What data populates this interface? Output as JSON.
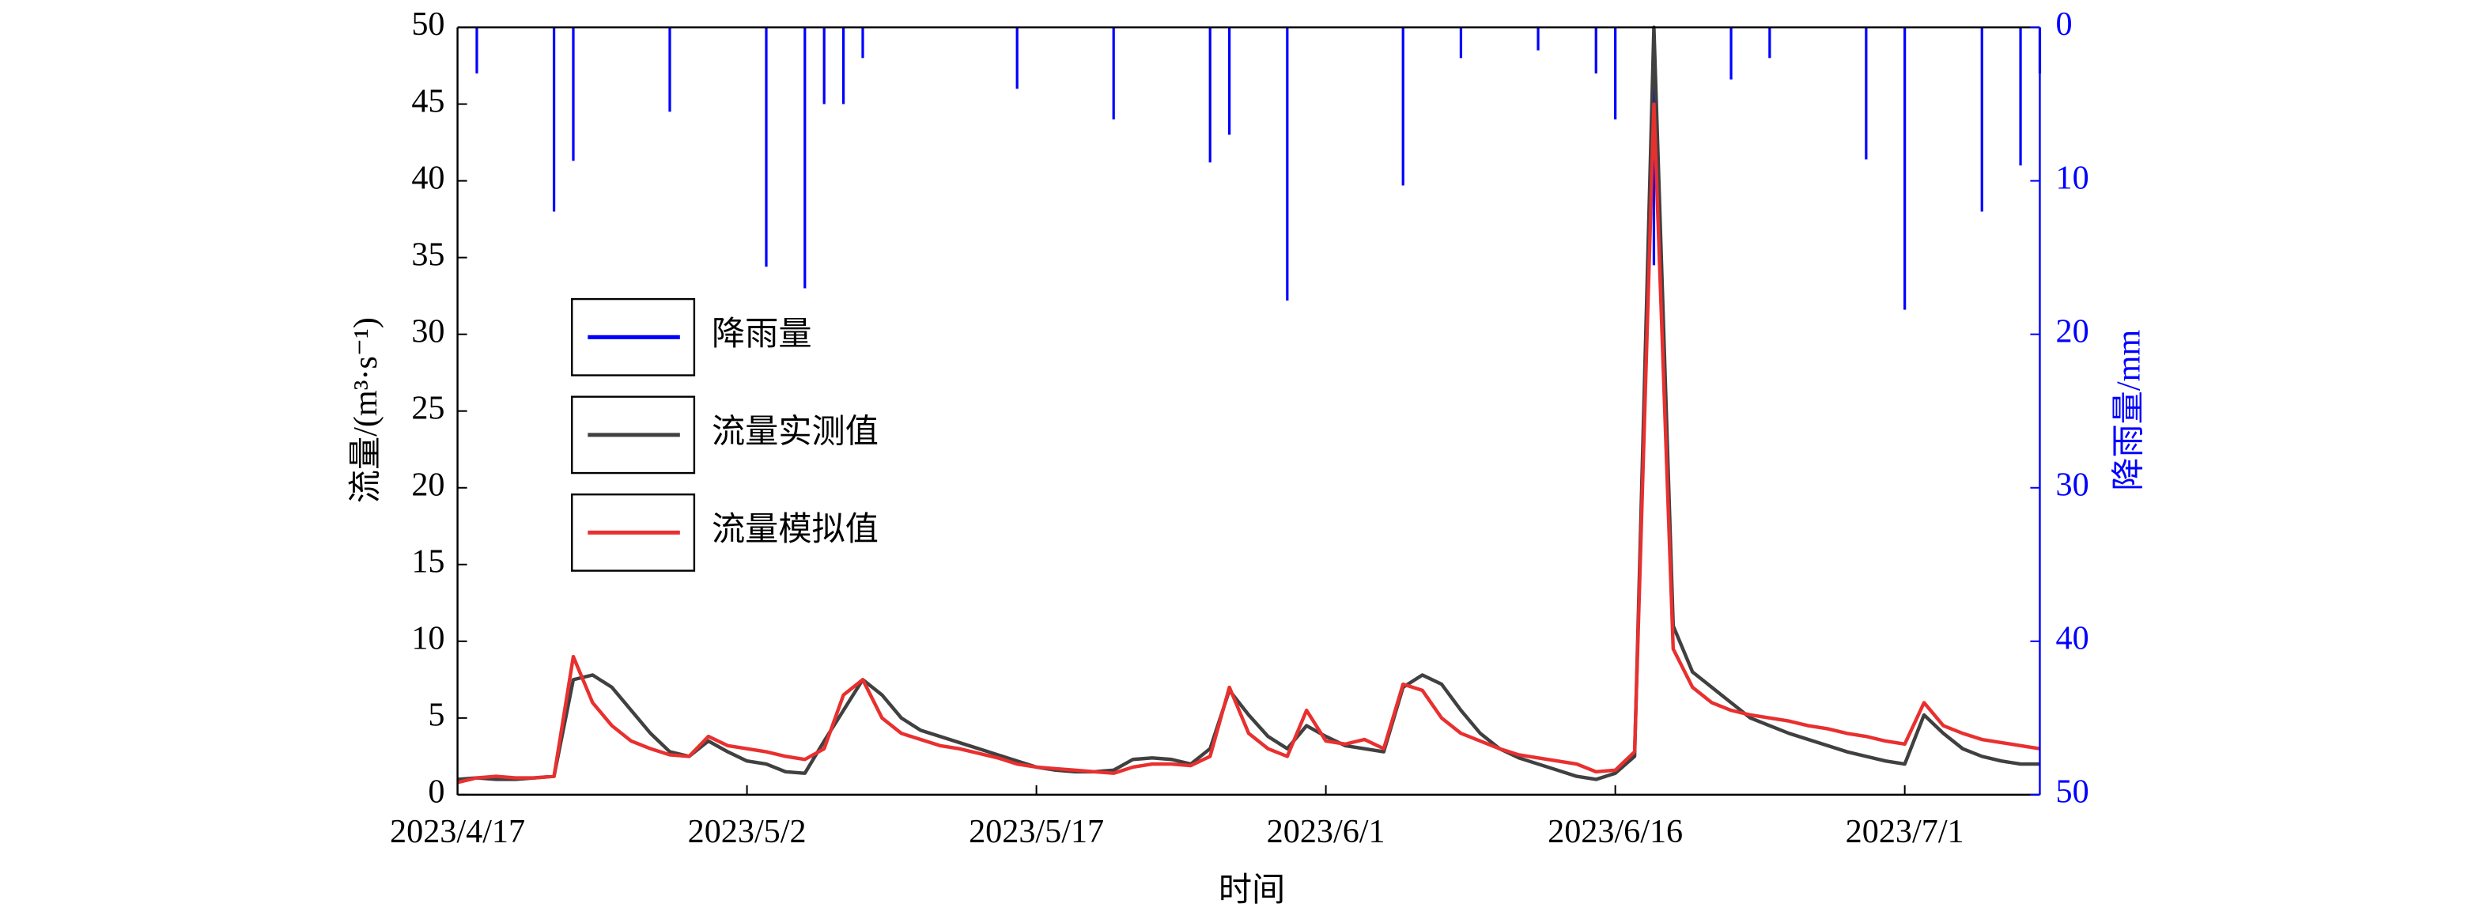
{
  "chart_data": {
    "type": "line",
    "x_label": "时间",
    "y_label": "流量/(m³·s⁻¹)",
    "y2_label": "降雨量/mm",
    "x": [
      "2023/4/17",
      "2023/4/18",
      "2023/4/19",
      "2023/4/20",
      "2023/4/21",
      "2023/4/22",
      "2023/4/23",
      "2023/4/24",
      "2023/4/25",
      "2023/4/26",
      "2023/4/27",
      "2023/4/28",
      "2023/4/29",
      "2023/4/30",
      "2023/5/1",
      "2023/5/2",
      "2023/5/3",
      "2023/5/4",
      "2023/5/5",
      "2023/5/6",
      "2023/5/7",
      "2023/5/8",
      "2023/5/9",
      "2023/5/10",
      "2023/5/11",
      "2023/5/12",
      "2023/5/13",
      "2023/5/14",
      "2023/5/15",
      "2023/5/16",
      "2023/5/17",
      "2023/5/18",
      "2023/5/19",
      "2023/5/20",
      "2023/5/21",
      "2023/5/22",
      "2023/5/23",
      "2023/5/24",
      "2023/5/25",
      "2023/5/26",
      "2023/5/27",
      "2023/5/28",
      "2023/5/29",
      "2023/5/30",
      "2023/5/31",
      "2023/6/1",
      "2023/6/2",
      "2023/6/3",
      "2023/6/4",
      "2023/6/5",
      "2023/6/6",
      "2023/6/7",
      "2023/6/8",
      "2023/6/9",
      "2023/6/10",
      "2023/6/11",
      "2023/6/12",
      "2023/6/13",
      "2023/6/14",
      "2023/6/15",
      "2023/6/16",
      "2023/6/17",
      "2023/6/18",
      "2023/6/19",
      "2023/6/20",
      "2023/6/21",
      "2023/6/22",
      "2023/6/23",
      "2023/6/24",
      "2023/6/25",
      "2023/6/26",
      "2023/6/27",
      "2023/6/28",
      "2023/6/29",
      "2023/6/30",
      "2023/7/1",
      "2023/7/2",
      "2023/7/3",
      "2023/7/4",
      "2023/7/5",
      "2023/7/6",
      "2023/7/7",
      "2023/7/8"
    ],
    "series": [
      {
        "name": "降雨量",
        "type": "bar",
        "axis": "y2",
        "color": "#0000ff",
        "x": [
          "2023/4/18",
          "2023/4/22",
          "2023/4/23",
          "2023/4/28",
          "2023/5/3",
          "2023/5/5",
          "2023/5/6",
          "2023/5/7",
          "2023/5/8",
          "2023/5/16",
          "2023/5/21",
          "2023/5/26",
          "2023/5/27",
          "2023/5/30",
          "2023/6/5",
          "2023/6/8",
          "2023/6/12",
          "2023/6/15",
          "2023/6/16",
          "2023/6/18",
          "2023/6/22",
          "2023/6/24",
          "2023/6/29",
          "2023/7/1",
          "2023/7/5",
          "2023/7/7",
          "2023/7/8"
        ],
        "values": [
          3,
          12,
          8.7,
          5.5,
          15.6,
          17,
          5,
          5,
          2,
          4,
          6,
          8.8,
          7,
          17.8,
          10.3,
          2,
          1.5,
          3,
          6,
          15.5,
          3.4,
          2,
          8.6,
          18.4,
          12,
          9,
          3
        ]
      },
      {
        "name": "流量实测值",
        "color": "#404040",
        "values": [
          1.0,
          1.1,
          1.0,
          1.0,
          1.1,
          1.2,
          7.5,
          7.8,
          7.0,
          5.5,
          4.0,
          2.8,
          2.5,
          3.5,
          2.8,
          2.2,
          2.0,
          1.5,
          1.4,
          3.5,
          5.5,
          7.5,
          6.5,
          5.0,
          4.2,
          3.8,
          3.4,
          3.0,
          2.6,
          2.2,
          1.8,
          1.6,
          1.5,
          1.5,
          1.6,
          2.3,
          2.4,
          2.3,
          2.0,
          3.0,
          6.8,
          5.2,
          3.8,
          3.0,
          4.5,
          3.8,
          3.2,
          3.0,
          2.8,
          7.0,
          7.8,
          7.2,
          5.5,
          4.0,
          3.0,
          2.4,
          2.0,
          1.6,
          1.2,
          1.0,
          1.4,
          2.5,
          50,
          11,
          8,
          7,
          6,
          5,
          4.5,
          4.0,
          3.6,
          3.2,
          2.8,
          2.5,
          2.2,
          2.0,
          5.2,
          4.0,
          3.0,
          2.5,
          2.2,
          2.0,
          2.0
        ]
      },
      {
        "name": "流量模拟值",
        "color": "#e8302f",
        "values": [
          0.8,
          1.1,
          1.2,
          1.1,
          1.1,
          1.2,
          9.0,
          6.0,
          4.5,
          3.5,
          3.0,
          2.6,
          2.5,
          3.8,
          3.2,
          3.0,
          2.8,
          2.5,
          2.3,
          3.0,
          6.5,
          7.5,
          5.0,
          4.0,
          3.6,
          3.2,
          3.0,
          2.7,
          2.4,
          2.0,
          1.8,
          1.7,
          1.6,
          1.5,
          1.4,
          1.8,
          2.0,
          2.0,
          1.9,
          2.5,
          7.0,
          4.0,
          3.0,
          2.5,
          5.5,
          3.5,
          3.3,
          3.6,
          3.0,
          7.2,
          6.8,
          5.0,
          4.0,
          3.5,
          3.0,
          2.6,
          2.4,
          2.2,
          2.0,
          1.5,
          1.6,
          2.8,
          45,
          9.5,
          7,
          6,
          5.5,
          5.2,
          5.0,
          4.8,
          4.5,
          4.3,
          4.0,
          3.8,
          3.5,
          3.3,
          6.0,
          4.5,
          4.0,
          3.6,
          3.4,
          3.2,
          3.0
        ]
      }
    ],
    "xlim": [
      "2023/4/17",
      "2023/7/8"
    ],
    "xticks": [
      "2023/4/17",
      "2023/5/2",
      "2023/5/17",
      "2023/6/1",
      "2023/6/16",
      "2023/7/1"
    ],
    "ylim": [
      0,
      50
    ],
    "yticks": [
      0,
      5,
      10,
      15,
      20,
      25,
      30,
      35,
      40,
      45,
      50
    ],
    "y2lim": [
      0,
      50
    ],
    "y2ticks": [
      0,
      10,
      20,
      30,
      40,
      50
    ],
    "y2_inverted": true,
    "y2_color": "#0000ff",
    "legend": "left"
  }
}
